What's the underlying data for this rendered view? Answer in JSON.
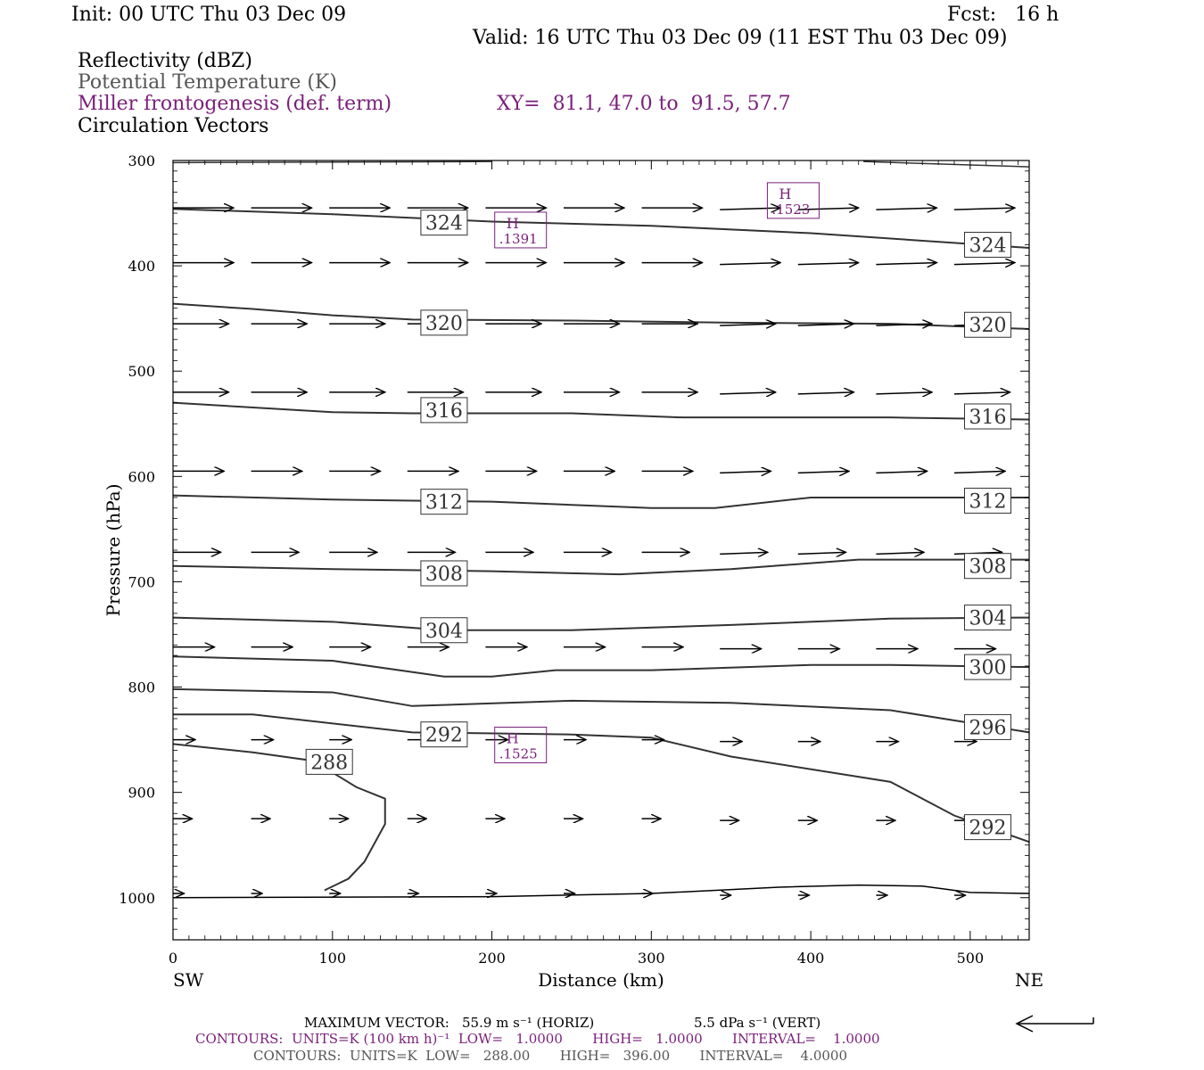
{
  "header": {
    "init": "Init: 00 UTC Thu 03 Dec 09",
    "fcst": "Fcst:   16 h",
    "valid": "Valid: 16 UTC Thu 03 Dec 09 (11 EST Thu 03 Dec 09)",
    "field1": "Reflectivity (dBZ)",
    "field2": "Potential Temperature (K)",
    "field3": "Miller frontogenesis (def. term)",
    "xy": "XY=  81.1, 47.0 to  91.5, 57.7",
    "field4": "Circulation Vectors"
  },
  "colors": {
    "purple": "#7a1f7a",
    "contour": "#333333",
    "text": "#000000"
  },
  "chart_data": {
    "type": "line",
    "xlabel": "Distance (km)",
    "ylabel": "Pressure (hPa)",
    "xlim": [
      0,
      537
    ],
    "ylim": [
      300,
      1040
    ],
    "y_log_scale": false,
    "x_ticks": [
      0,
      100,
      200,
      300,
      400,
      500
    ],
    "y_ticks": [
      300,
      400,
      500,
      600,
      700,
      800,
      900,
      1000
    ],
    "x_end_labels": {
      "left": "SW",
      "right": "NE"
    },
    "theta_contours": [
      {
        "value": "324",
        "points": [
          [
            0,
            346
          ],
          [
            100,
            351
          ],
          [
            200,
            358
          ],
          [
            300,
            362
          ],
          [
            400,
            369
          ],
          [
            537,
            383
          ]
        ],
        "labels": [
          [
            170,
            359
          ],
          [
            511,
            380
          ]
        ]
      },
      {
        "value": "320",
        "points": [
          [
            0,
            436
          ],
          [
            50,
            441
          ],
          [
            100,
            447
          ],
          [
            150,
            451
          ],
          [
            250,
            452
          ],
          [
            350,
            454
          ],
          [
            450,
            455
          ],
          [
            537,
            460
          ]
        ],
        "labels": [
          [
            170,
            454
          ],
          [
            511,
            456
          ]
        ]
      },
      {
        "value": "316",
        "points": [
          [
            0,
            530
          ],
          [
            100,
            539
          ],
          [
            150,
            540
          ],
          [
            250,
            540
          ],
          [
            320,
            544
          ],
          [
            450,
            544
          ],
          [
            537,
            546
          ]
        ],
        "labels": [
          [
            170,
            537
          ],
          [
            511,
            543
          ]
        ]
      },
      {
        "value": "312",
        "points": [
          [
            0,
            618
          ],
          [
            100,
            622
          ],
          [
            200,
            624
          ],
          [
            300,
            630
          ],
          [
            340,
            630
          ],
          [
            400,
            620
          ],
          [
            537,
            620
          ]
        ],
        "labels": [
          [
            170,
            624
          ],
          [
            511,
            623
          ]
        ]
      },
      {
        "value": "308",
        "points": [
          [
            0,
            685
          ],
          [
            100,
            688
          ],
          [
            200,
            690
          ],
          [
            280,
            693
          ],
          [
            350,
            688
          ],
          [
            430,
            679
          ],
          [
            537,
            679
          ]
        ],
        "labels": [
          [
            170,
            692
          ],
          [
            511,
            685
          ]
        ]
      },
      {
        "value": "304",
        "points": [
          [
            0,
            734
          ],
          [
            100,
            738
          ],
          [
            170,
            746
          ],
          [
            250,
            746
          ],
          [
            350,
            741
          ],
          [
            450,
            735
          ],
          [
            537,
            734
          ]
        ],
        "labels": [
          [
            170,
            746
          ],
          [
            511,
            734
          ]
        ]
      },
      {
        "value": "300",
        "points": [
          [
            0,
            771
          ],
          [
            100,
            775
          ],
          [
            170,
            790
          ],
          [
            200,
            790
          ],
          [
            240,
            784
          ],
          [
            300,
            784
          ],
          [
            400,
            779
          ],
          [
            450,
            779
          ],
          [
            537,
            781
          ]
        ],
        "labels": [
          [
            511,
            781
          ]
        ]
      },
      {
        "value": "296",
        "points": [
          [
            0,
            802
          ],
          [
            100,
            805
          ],
          [
            150,
            818
          ],
          [
            250,
            813
          ],
          [
            350,
            815
          ],
          [
            450,
            822
          ],
          [
            537,
            843
          ]
        ],
        "labels": [
          [
            511,
            838
          ]
        ]
      },
      {
        "value": "292",
        "points": [
          [
            0,
            826
          ],
          [
            50,
            826
          ],
          [
            150,
            843
          ],
          [
            250,
            845
          ],
          [
            300,
            848
          ],
          [
            350,
            866
          ],
          [
            450,
            890
          ],
          [
            490,
            922
          ],
          [
            537,
            947
          ]
        ],
        "labels": [
          [
            170,
            845
          ],
          [
            511,
            933
          ]
        ]
      },
      {
        "value": "288",
        "points": [
          [
            0,
            854
          ],
          [
            50,
            862
          ],
          [
            88,
            870
          ],
          [
            115,
            895
          ],
          [
            133,
            906
          ],
          [
            133,
            930
          ],
          [
            120,
            966
          ],
          [
            110,
            982
          ],
          [
            95,
            993
          ]
        ],
        "labels": [
          [
            98,
            871
          ]
        ]
      }
    ],
    "frontogenesis_maxima": [
      {
        "label": "H",
        "value": ".1391",
        "x": 218,
        "y": 366
      },
      {
        "label": "H",
        "value": ".1523",
        "x": 389,
        "y": 338
      },
      {
        "label": "H",
        "value": ".1525",
        "x": 218,
        "y": 855
      }
    ],
    "vector_rows": [
      {
        "p": 345,
        "length_km": 38,
        "start_x": 0
      },
      {
        "p": 397,
        "length_km": 38,
        "start_x": 0
      },
      {
        "p": 455,
        "length_km": 35,
        "start_x": 0
      },
      {
        "p": 520,
        "length_km": 35,
        "start_x": 0
      },
      {
        "p": 595,
        "length_km": 32,
        "start_x": 0
      },
      {
        "p": 672,
        "length_km": 30,
        "start_x": 0
      },
      {
        "p": 762,
        "length_km": 26,
        "start_x": 0
      },
      {
        "p": 850,
        "length_km": 14,
        "start_x": 0
      },
      {
        "p": 925,
        "length_km": 12,
        "start_x": 0
      },
      {
        "p": 996,
        "length_km": 7,
        "start_x": 0
      }
    ],
    "vector_columns_x": [
      0,
      49,
      98,
      147,
      196,
      245,
      294,
      343,
      392,
      441,
      490
    ],
    "footer": {
      "max_vector_label": "MAXIMUM VECTOR:",
      "max_vector_horiz": "55.9 m s⁻¹ (HORIZ)",
      "max_vector_vert": "5.5 dPa s⁻¹ (VERT)",
      "contours1": "CONTOURS:  UNITS=K (100 km h)⁻¹  LOW=   1.0000       HIGH=   1.0000       INTERVAL=    1.0000",
      "contours2": "CONTOURS:  UNITS=K  LOW=   288.00       HIGH=   396.00       INTERVAL=    4.0000"
    }
  }
}
